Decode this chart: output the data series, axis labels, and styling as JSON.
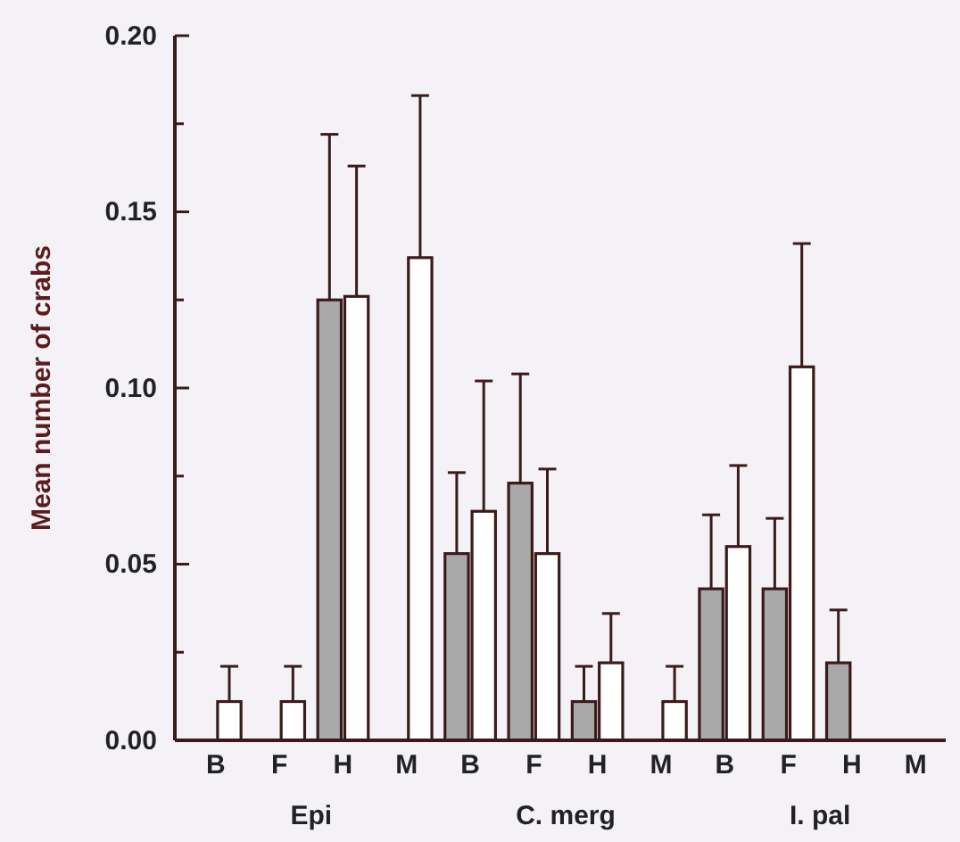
{
  "chart_data": {
    "type": "bar",
    "ylabel": "Mean number of crabs",
    "categories": [
      "B",
      "F",
      "H",
      "M",
      "B",
      "F",
      "H",
      "M",
      "B",
      "F",
      "H",
      "M"
    ],
    "series": [
      {
        "color": "#a9a9a9",
        "values": [
          null,
          null,
          0.125,
          null,
          0.053,
          0.073,
          0.011,
          null,
          0.043,
          0.043,
          0.022,
          null
        ],
        "errors": [
          null,
          null,
          [
            0.125,
            0.172
          ],
          null,
          [
            0.053,
            0.076
          ],
          [
            0.073,
            0.104
          ],
          [
            0.011,
            0.021
          ],
          null,
          [
            0.043,
            0.064
          ],
          [
            0.043,
            0.063
          ],
          [
            0.022,
            0.037
          ],
          null
        ]
      },
      {
        "color": "#ffffff",
        "values": [
          0.011,
          0.011,
          0.126,
          0.137,
          0.065,
          0.053,
          0.022,
          0.011,
          0.055,
          0.106,
          null,
          null
        ],
        "errors": [
          [
            0.011,
            0.021
          ],
          [
            0.011,
            0.021
          ],
          [
            0.126,
            0.163
          ],
          [
            0.137,
            0.183
          ],
          [
            0.065,
            0.102
          ],
          [
            0.053,
            0.077
          ],
          [
            0.022,
            0.036
          ],
          [
            0.011,
            0.021
          ],
          [
            0.055,
            0.078
          ],
          [
            0.106,
            0.141
          ],
          null,
          null
        ]
      }
    ],
    "annotations": [
      "Epi",
      "C. merg",
      "I. pal"
    ],
    "ylim": [
      0,
      0.2
    ],
    "yticks": [
      {
        "value": 0,
        "label": "0.00"
      },
      {
        "value": 0.025,
        "label": null
      },
      {
        "value": 0.05,
        "label": "0.05"
      },
      {
        "value": 0.075,
        "label": null
      },
      {
        "value": 0.1,
        "label": "0.10"
      },
      {
        "value": 0.125,
        "label": null
      },
      {
        "value": 0.15,
        "label": "0.15"
      },
      {
        "value": 0.175,
        "label": null
      },
      {
        "value": 0.2,
        "label": "0.20"
      }
    ],
    "grid": false
  }
}
